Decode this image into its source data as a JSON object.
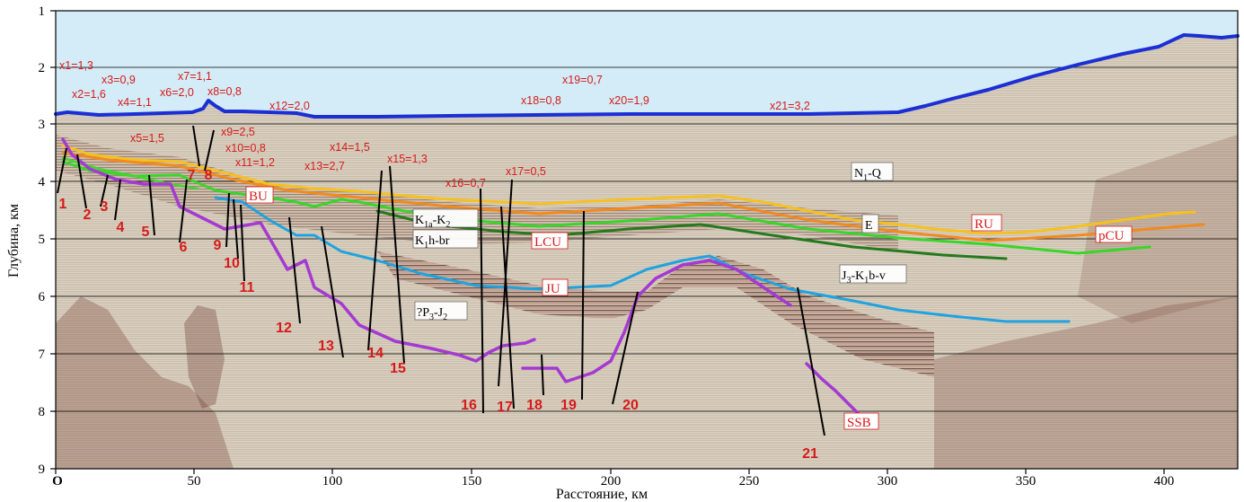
{
  "axes": {
    "y_label": "Глубина, км",
    "x_label": "Расстояние, км",
    "y_ticks": [
      "1",
      "2",
      "3",
      "4",
      "5",
      "6",
      "7",
      "8",
      "9"
    ],
    "x_ticks": [
      "O",
      "50",
      "100",
      "150",
      "200",
      "250",
      "300",
      "350",
      "400"
    ]
  },
  "horizons": [
    {
      "id": "seafloor",
      "color": "#1c2fd4"
    },
    {
      "id": "RU",
      "label": "RU",
      "color": "#f6c11f"
    },
    {
      "id": "E",
      "label": "E",
      "color": "#f28a1d"
    },
    {
      "id": "pCU",
      "label": "pCU",
      "color": "#38d62a"
    },
    {
      "id": "LCU",
      "label": "LCU",
      "color": "#267a1e"
    },
    {
      "id": "BU",
      "label": "BU",
      "color": "#42d62e"
    },
    {
      "id": "JU",
      "label": "JU",
      "color": "#1fa3e0"
    },
    {
      "id": "SSB",
      "label": "SSB",
      "color": "#a43ad1"
    }
  ],
  "horizon_labels": {
    "BU": "BU",
    "LCU": "LCU",
    "JU": "JU",
    "RU": "RU",
    "pCU": "pCU",
    "SSB": "SSB",
    "E": "E"
  },
  "units": {
    "N1Q_main": "N",
    "N1Q_sub": "1",
    "N1Q_tail": "-Q",
    "K1aK2_main": "K",
    "K1aK2_sub": "1a",
    "K1aK2_tail": "-K",
    "K1aK2_sub2": "2",
    "K1hbr_main": "K",
    "K1hbr_sub": "1",
    "K1hbr_tail": "h-br",
    "J3K1bv_main": "J",
    "J3K1bv_sub": "3",
    "J3K1bv_mid": "-K",
    "J3K1bv_sub2": "1",
    "J3K1bv_tail": "b-v",
    "P3J2_pre": "?P",
    "P3J2_sub": "3",
    "P3J2_tail": "-J",
    "P3J2_sub2": "2"
  },
  "fault_numbers": [
    "1",
    "2",
    "3",
    "4",
    "5",
    "6",
    "7",
    "8",
    "9",
    "10",
    "11",
    "12",
    "13",
    "14",
    "15",
    "16",
    "17",
    "18",
    "19",
    "20",
    "21"
  ],
  "ratios": [
    "x1=1,3",
    "x2=1,6",
    "x3=0,9",
    "x4=1,1",
    "x5=1,5",
    "x6=2,0",
    "x7=1,1",
    "x8=0,8",
    "x9=2,5",
    "x10=0,8",
    "x11=1,2",
    "x12=2,0",
    "x13=2,7",
    "x14=1,5",
    "x15=1,3",
    "x16=0,7",
    "x17=0,5",
    "x18=0,8",
    "x19=0,7",
    "x20=1,9",
    "x21=3,2"
  ],
  "colors": {
    "water": "#d4ecf7",
    "sediment": "#ddd6c8",
    "fault": "#000000",
    "annotation": "#d61b1b"
  }
}
